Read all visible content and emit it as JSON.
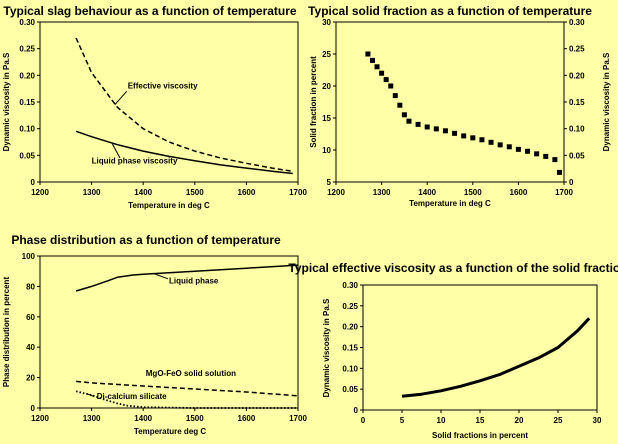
{
  "chart_data": [
    {
      "type": "line",
      "title": "Typical slag behaviour as a function of temperature",
      "xlabel": "Temperature in deg C",
      "ylabel": "Dynamic viscosity in Pa.S",
      "xlim": [
        1200,
        1700
      ],
      "ylim": [
        0,
        0.3
      ],
      "xticks": [
        "1200",
        "1300",
        "1400",
        "1500",
        "1600",
        "1700"
      ],
      "yticks": [
        "0",
        "0.05",
        "0.10",
        "0.15",
        "0.20",
        "0.25",
        "0.30"
      ],
      "series": [
        {
          "name": "Effective viscosity",
          "style": "dashed",
          "x": [
            1270,
            1300,
            1350,
            1400,
            1450,
            1500,
            1550,
            1600,
            1650,
            1690
          ],
          "y": [
            0.27,
            0.205,
            0.14,
            0.1,
            0.075,
            0.058,
            0.045,
            0.035,
            0.026,
            0.02
          ]
        },
        {
          "name": "Liquid phase viscosity",
          "style": "solid",
          "x": [
            1270,
            1300,
            1350,
            1400,
            1450,
            1500,
            1550,
            1600,
            1650,
            1690
          ],
          "y": [
            0.095,
            0.085,
            0.07,
            0.058,
            0.048,
            0.04,
            0.032,
            0.026,
            0.02,
            0.016
          ]
        }
      ],
      "annotations": [
        {
          "text": "Effective viscosity",
          "x": 1370,
          "y": 0.175
        },
        {
          "text": "Liquid phase viscosity",
          "x": 1300,
          "y": 0.035
        }
      ]
    },
    {
      "type": "scatter",
      "title": "Typical solid fraction as a function of temperature",
      "xlabel": "Temperature in deg C",
      "ylabel": "Solid fraction in percent",
      "ylabel2": "Dynamic viscosity in Pa.S",
      "xlim": [
        1200,
        1700
      ],
      "ylim": [
        5,
        30
      ],
      "ylim2": [
        0,
        0.3
      ],
      "xticks": [
        "1200",
        "1300",
        "1400",
        "1500",
        "1600",
        "1700"
      ],
      "yticks": [
        "5",
        "10",
        "15",
        "20",
        "25",
        "30"
      ],
      "yticks2": [
        "0",
        "0.05",
        "0.10",
        "0.15",
        "0.20",
        "0.25",
        "0.30"
      ],
      "series": [
        {
          "x": [
            1270,
            1280,
            1290,
            1300,
            1310,
            1320,
            1330,
            1340,
            1350,
            1360,
            1380,
            1400,
            1420,
            1440,
            1460,
            1480,
            1500,
            1520,
            1540,
            1560,
            1580,
            1600,
            1620,
            1640,
            1660,
            1680,
            1690
          ],
          "y": [
            25.0,
            24.0,
            23.0,
            22.0,
            21.0,
            20.0,
            18.5,
            17.0,
            15.5,
            14.5,
            14.0,
            13.6,
            13.3,
            13.0,
            12.6,
            12.2,
            11.9,
            11.6,
            11.2,
            10.8,
            10.5,
            10.1,
            9.8,
            9.4,
            9.0,
            8.5,
            6.5
          ]
        }
      ]
    },
    {
      "type": "line",
      "title": "Phase distribution as a function of temperature",
      "xlabel": "Temperature deg C",
      "ylabel": "Phase distribution in percent",
      "xlim": [
        1200,
        1700
      ],
      "ylim": [
        0,
        100
      ],
      "xticks": [
        "1200",
        "1300",
        "1400",
        "1500",
        "1600",
        "1700"
      ],
      "yticks": [
        "0",
        "20",
        "40",
        "60",
        "80",
        "100"
      ],
      "series": [
        {
          "name": "Liquid phase",
          "style": "solid",
          "x": [
            1270,
            1300,
            1330,
            1350,
            1380,
            1400,
            1500,
            1600,
            1700
          ],
          "y": [
            77,
            80,
            83.5,
            86,
            87.5,
            88,
            90,
            92,
            94
          ]
        },
        {
          "name": "MgO-FeO solid solution",
          "style": "dashed",
          "x": [
            1270,
            1300,
            1400,
            1500,
            1600,
            1700
          ],
          "y": [
            17.5,
            16.5,
            14.5,
            12.5,
            10.5,
            8
          ]
        },
        {
          "name": "Di-calcium silicate",
          "style": "dotted",
          "x": [
            1270,
            1300,
            1330,
            1350,
            1370,
            1400,
            1500,
            1600,
            1700
          ],
          "y": [
            11,
            8.5,
            5,
            3,
            1.5,
            0.5,
            0,
            0,
            0
          ]
        }
      ],
      "annotations": [
        {
          "text": "Liquid phase",
          "x": 1450,
          "y": 82
        },
        {
          "text": "MgO-FeO solid solution",
          "x": 1405,
          "y": 21
        },
        {
          "text": "Di-calcium silicate",
          "x": 1310,
          "y": 6
        }
      ]
    },
    {
      "type": "line",
      "title": "Typical effective viscosity as a function of the solid fraction",
      "xlabel": "Solid fractions in percent",
      "ylabel": "Dynamic viscosity in Pa.S",
      "xlim": [
        0,
        30
      ],
      "ylim": [
        0,
        0.3
      ],
      "xticks": [
        "0",
        "5",
        "10",
        "15",
        "20",
        "25",
        "30"
      ],
      "yticks": [
        "0",
        "0.05",
        "0.10",
        "0.15",
        "0.20",
        "0.25",
        "0.30"
      ],
      "series": [
        {
          "style": "solid-thick",
          "x": [
            5,
            7.5,
            10,
            12.5,
            15,
            17.5,
            20,
            22.5,
            25,
            27.5,
            29
          ],
          "y": [
            0.033,
            0.038,
            0.046,
            0.057,
            0.07,
            0.085,
            0.105,
            0.125,
            0.15,
            0.19,
            0.22
          ]
        }
      ]
    }
  ]
}
